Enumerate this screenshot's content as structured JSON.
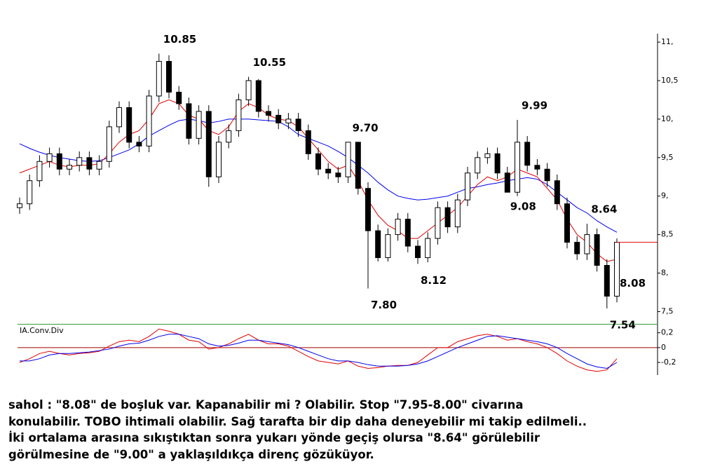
{
  "chart_data": [
    {
      "type": "candlestick",
      "open": [
        8.85,
        8.9,
        9.2,
        9.45,
        9.55,
        9.35,
        9.4,
        9.5,
        9.35,
        9.45,
        9.9,
        10.15,
        9.7,
        9.65,
        10.3,
        10.75,
        10.35,
        10.2,
        9.75,
        10.1,
        9.25,
        9.7,
        9.85,
        10.25,
        10.5,
        10.1,
        10.05,
        9.95,
        10.0,
        9.85,
        9.55,
        9.35,
        9.3,
        9.25,
        9.7,
        9.1,
        8.55,
        8.2,
        8.5,
        8.7,
        8.35,
        8.2,
        8.45,
        8.85,
        8.6,
        8.95,
        9.3,
        9.5,
        9.55,
        9.3,
        9.05,
        9.7,
        9.4,
        9.35,
        9.2,
        8.9,
        8.4,
        8.25,
        8.5,
        8.1,
        7.7
      ],
      "high": [
        8.98,
        9.28,
        9.53,
        9.63,
        9.63,
        9.48,
        9.58,
        9.58,
        9.53,
        9.98,
        10.23,
        10.23,
        9.78,
        10.38,
        10.85,
        10.83,
        10.43,
        10.28,
        10.18,
        10.18,
        9.78,
        9.93,
        10.33,
        10.55,
        10.52,
        10.18,
        10.13,
        10.08,
        10.08,
        9.93,
        9.63,
        9.43,
        9.38,
        9.7,
        9.7,
        9.18,
        8.63,
        8.58,
        8.78,
        8.78,
        8.43,
        8.53,
        8.93,
        8.93,
        9.03,
        9.38,
        9.58,
        9.63,
        9.63,
        9.38,
        9.99,
        9.78,
        9.48,
        9.43,
        9.28,
        8.98,
        8.48,
        8.64,
        8.58,
        8.18,
        8.45
      ],
      "low": [
        8.77,
        8.82,
        9.12,
        9.37,
        9.27,
        9.27,
        9.32,
        9.27,
        9.27,
        9.37,
        9.82,
        9.62,
        9.57,
        9.57,
        10.22,
        10.27,
        10.12,
        9.67,
        9.67,
        9.12,
        9.17,
        9.62,
        9.77,
        10.17,
        10.02,
        9.97,
        9.87,
        9.87,
        9.77,
        9.47,
        9.27,
        9.22,
        9.17,
        9.17,
        9.02,
        7.8,
        8.15,
        8.15,
        8.42,
        8.27,
        8.12,
        8.14,
        8.37,
        8.52,
        8.52,
        8.87,
        9.22,
        9.42,
        9.22,
        9.08,
        9.0,
        9.32,
        9.27,
        9.12,
        8.82,
        8.32,
        8.17,
        8.17,
        8.02,
        7.54,
        7.62
      ],
      "close": [
        8.9,
        9.2,
        9.45,
        9.55,
        9.35,
        9.4,
        9.5,
        9.35,
        9.45,
        9.9,
        10.15,
        9.7,
        9.65,
        10.3,
        10.75,
        10.35,
        10.2,
        9.75,
        10.1,
        9.25,
        9.7,
        9.85,
        10.25,
        10.5,
        10.1,
        10.05,
        9.95,
        10.0,
        9.85,
        9.55,
        9.35,
        9.3,
        9.25,
        9.7,
        9.1,
        8.55,
        8.2,
        8.5,
        8.7,
        8.35,
        8.2,
        8.45,
        8.85,
        8.6,
        8.95,
        9.3,
        9.5,
        9.55,
        9.3,
        9.05,
        9.7,
        9.4,
        9.35,
        9.2,
        8.9,
        8.4,
        8.25,
        8.5,
        8.1,
        7.7,
        8.4
      ],
      "overlays": [
        {
          "color": "#0000ee",
          "values": [
            9.68,
            9.62,
            9.57,
            9.53,
            9.5,
            9.48,
            9.46,
            9.45,
            9.46,
            9.5,
            9.55,
            9.6,
            9.68,
            9.78,
            9.85,
            9.92,
            9.98,
            10.0,
            9.98,
            9.95,
            9.97,
            10.0,
            10.0,
            10.0,
            9.99,
            9.98,
            9.97,
            9.9,
            9.8,
            9.75,
            9.7,
            9.65,
            9.58,
            9.5,
            9.4,
            9.3,
            9.18,
            9.08,
            9.0,
            8.97,
            8.95,
            8.96,
            8.98,
            9.0,
            9.05,
            9.1,
            9.12,
            9.15,
            9.17,
            9.2,
            9.22,
            9.24,
            9.22,
            9.15,
            9.05,
            8.95,
            8.85,
            8.78,
            8.68,
            8.6,
            8.53
          ]
        },
        {
          "color": "#e00000",
          "values": [
            9.3,
            9.35,
            9.4,
            9.45,
            9.4,
            9.38,
            9.4,
            9.4,
            9.42,
            9.55,
            9.7,
            9.8,
            9.85,
            10.0,
            10.2,
            10.25,
            10.2,
            10.05,
            10.0,
            9.85,
            9.8,
            9.9,
            10.1,
            10.2,
            10.15,
            10.05,
            10.0,
            9.98,
            9.9,
            9.75,
            9.6,
            9.45,
            9.35,
            9.4,
            9.2,
            8.95,
            8.75,
            8.62,
            8.55,
            8.45,
            8.45,
            8.55,
            8.65,
            8.75,
            8.85,
            9.0,
            9.15,
            9.25,
            9.2,
            9.25,
            9.35,
            9.3,
            9.25,
            9.1,
            8.95,
            8.7,
            8.5,
            8.4,
            8.25,
            8.15,
            8.18
          ]
        }
      ],
      "annotations": [
        {
          "index": 14,
          "value": 10.85,
          "label": "10.85"
        },
        {
          "index": 23,
          "value": 10.55,
          "label": "10.55"
        },
        {
          "index": 33,
          "value": 9.7,
          "label": "9.70"
        },
        {
          "index": 35,
          "value": 7.8,
          "label": "7.80"
        },
        {
          "index": 40,
          "value": 8.12,
          "label": "8.12"
        },
        {
          "index": 50,
          "value": 9.99,
          "label": "9.99"
        },
        {
          "index": 49,
          "value": 9.08,
          "label": "9.08"
        },
        {
          "index": 57,
          "value": 8.64,
          "label": "8.64"
        },
        {
          "index": 59,
          "value": 7.54,
          "label": "7.54"
        },
        {
          "index": 60,
          "value": 8.08,
          "label": "8.08"
        }
      ],
      "last_price_line": true,
      "ylim": [
        7.34,
        11.11
      ],
      "yticks": [
        {
          "value": 11,
          "label": "11,"
        },
        {
          "value": 10.5,
          "label": "10,5"
        },
        {
          "value": 10,
          "label": "10,"
        },
        {
          "value": 9.5,
          "label": "9,5"
        },
        {
          "value": 9,
          "label": "9,"
        },
        {
          "value": 8.5,
          "label": "8,5"
        },
        {
          "value": 8,
          "label": "8,"
        },
        {
          "value": 7.5,
          "label": "7,5"
        }
      ]
    },
    {
      "type": "line",
      "title": "IA.Conv.Div",
      "series": [
        {
          "color": "#e00000",
          "values": [
            -0.2,
            -0.15,
            -0.08,
            -0.05,
            -0.08,
            -0.1,
            -0.08,
            -0.07,
            -0.05,
            0.02,
            0.08,
            0.1,
            0.08,
            0.15,
            0.25,
            0.22,
            0.18,
            0.1,
            0.08,
            -0.02,
            0.0,
            0.05,
            0.12,
            0.18,
            0.1,
            0.05,
            0.05,
            0.02,
            -0.05,
            -0.12,
            -0.18,
            -0.2,
            -0.22,
            -0.18,
            -0.25,
            -0.28,
            -0.27,
            -0.25,
            -0.24,
            -0.24,
            -0.2,
            -0.1,
            0.0,
            0.0,
            0.08,
            0.12,
            0.16,
            0.18,
            0.15,
            0.1,
            0.12,
            0.08,
            0.05,
            0.0,
            -0.08,
            -0.18,
            -0.25,
            -0.3,
            -0.32,
            -0.3,
            -0.15
          ]
        },
        {
          "color": "#0000ee",
          "values": [
            -0.18,
            -0.18,
            -0.15,
            -0.1,
            -0.08,
            -0.08,
            -0.07,
            -0.06,
            -0.04,
            -0.02,
            0.02,
            0.05,
            0.06,
            0.1,
            0.15,
            0.18,
            0.18,
            0.15,
            0.12,
            0.05,
            0.02,
            0.03,
            0.06,
            0.1,
            0.1,
            0.08,
            0.06,
            0.04,
            0.0,
            -0.05,
            -0.1,
            -0.15,
            -0.18,
            -0.18,
            -0.2,
            -0.23,
            -0.25,
            -0.25,
            -0.25,
            -0.24,
            -0.22,
            -0.18,
            -0.12,
            -0.06,
            0.0,
            0.05,
            0.1,
            0.15,
            0.16,
            0.14,
            0.12,
            0.1,
            0.08,
            0.05,
            0.0,
            -0.08,
            -0.15,
            -0.22,
            -0.26,
            -0.28,
            -0.2
          ]
        }
      ],
      "zero_line": true,
      "ylim": [
        -0.37,
        0.31
      ],
      "yticks": [
        {
          "value": 0.2,
          "label": "0,2"
        },
        0,
        {
          "value": -0.2,
          "label": "-0,2"
        }
      ]
    }
  ],
  "commentary": [
    "sahol : \"8.08\" de boşluk var. Kapanabilir mi ? Olabilir. Stop \"7.95-8.00\" civarına",
    "konulabilir. TOBO ihtimali olabilir. Sağ tarafta bir dip daha deneyebilir mi takip edilmeli..",
    "İki ortalama arasına sıkıştıktan sonra yukarı yönde geçiş olursa \"8.64\" görülebilir",
    "görülmesine de \"9.00\" a yaklaşıldıkça direnç gözüküyor."
  ]
}
